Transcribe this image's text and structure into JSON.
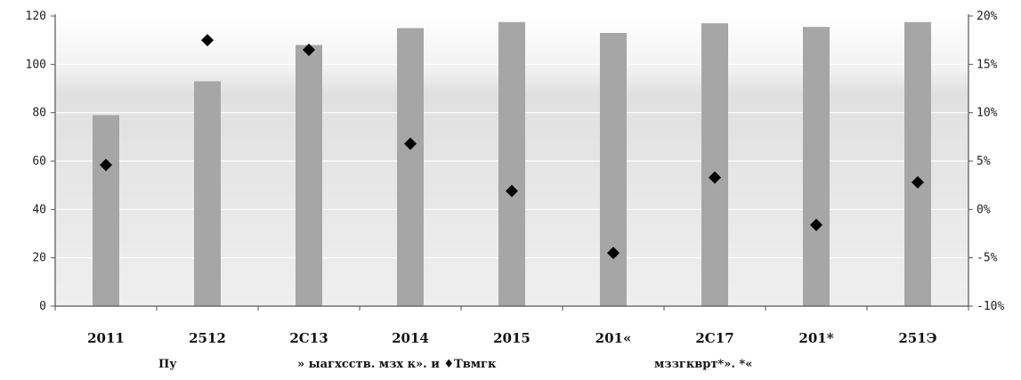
{
  "chart_data": {
    "type": "bar",
    "categories": [
      "2011",
      "2512",
      "2C13",
      "2014",
      "2015",
      "201«",
      "2C17",
      "201*",
      "251Э"
    ],
    "series": [
      {
        "kind": "bar",
        "axis": "left",
        "color": "#a6a6a6",
        "values": [
          79,
          93,
          108,
          115,
          117.5,
          113,
          117,
          115.5,
          117.5
        ]
      },
      {
        "kind": "scatter",
        "marker": "diamond",
        "axis": "right",
        "color": "#000000",
        "values": [
          4.6,
          17.5,
          16.5,
          6.8,
          1.9,
          -4.5,
          3.3,
          -1.6,
          2.8
        ]
      }
    ],
    "y_left": {
      "ylim": [
        0,
        120
      ],
      "ticks": [
        "0",
        "20",
        "40",
        "60",
        "80",
        "100",
        "120"
      ]
    },
    "y_right": {
      "ylim": [
        -10,
        20
      ],
      "ticks": [
        "-10%",
        "-5%",
        "0%",
        "5%",
        "10%",
        "15%",
        "20%"
      ]
    },
    "grid": true,
    "background": "gradient-grey"
  },
  "footnote": {
    "part1": "Пу",
    "part2": "» ыагхсств. мзх к». и ♦Твмгк",
    "part3": "мззгкврт*». *«"
  }
}
